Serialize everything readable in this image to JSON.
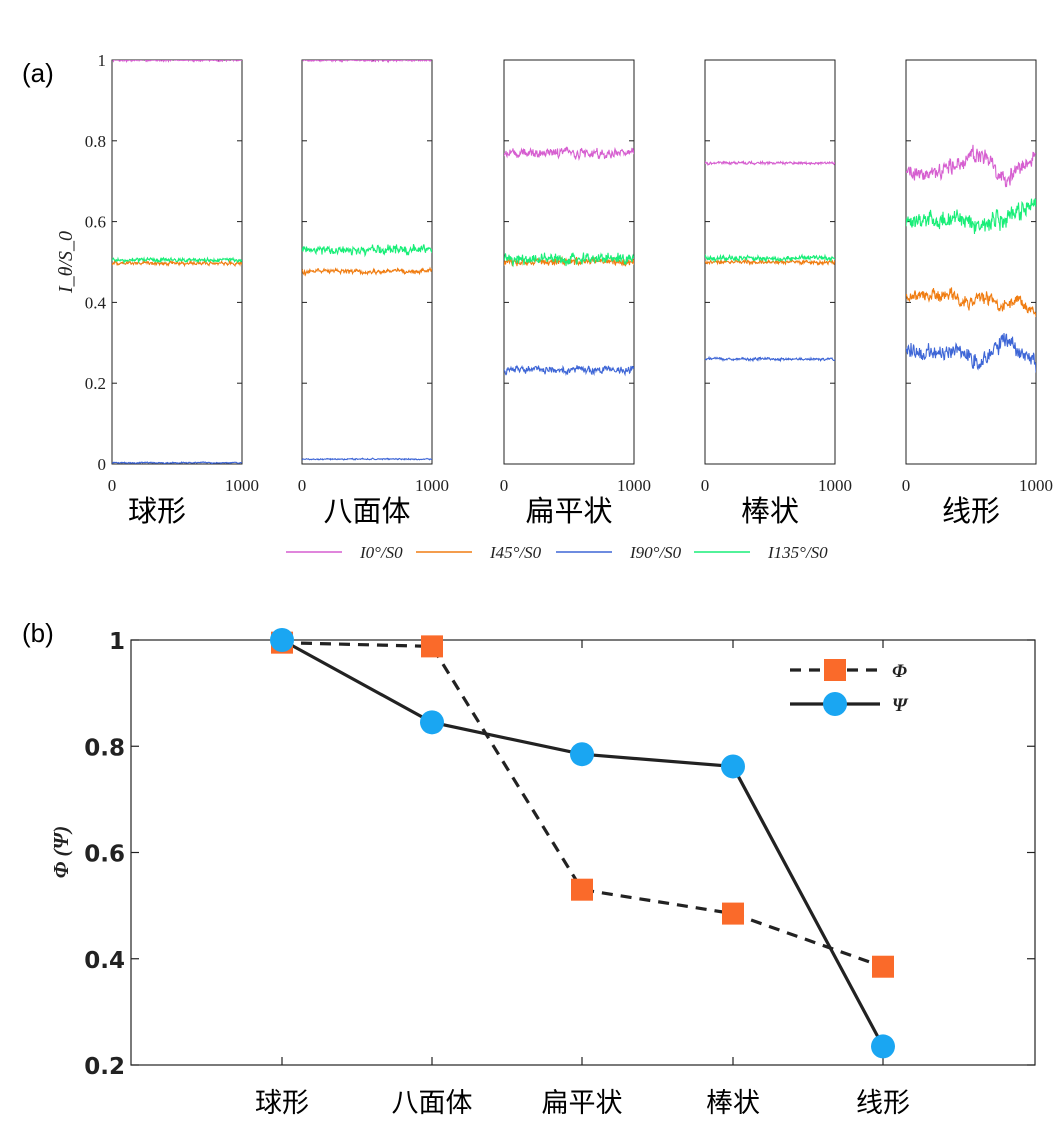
{
  "figure": {
    "panel_a_label": "(a)",
    "panel_b_label": "(b)"
  },
  "colors": {
    "I0": "#d65fd0",
    "I45": "#f07d12",
    "I90": "#3e66d6",
    "I135": "#19ee78",
    "phi": "#fa6a2a",
    "psi": "#1aa6f2",
    "line": "#222222"
  },
  "chart_data": [
    {
      "id": "a",
      "type": "line",
      "ylabel": "I_θ/S_0",
      "ylim": [
        0,
        1
      ],
      "yticks": [
        "0",
        "0.2",
        "0.4",
        "0.6",
        "0.8",
        "1"
      ],
      "xlim": [
        0,
        1000
      ],
      "xticks": [
        "0",
        "1000"
      ],
      "legend_position": "bottom-center",
      "series_names": [
        "I0°/S0",
        "I45°/S0",
        "I90°/S0",
        "I135°/S0"
      ],
      "subplots": [
        {
          "category": "球形",
          "series": [
            {
              "name": "I0°/S0",
              "mean": 1.0,
              "noise": 0.002,
              "trend": []
            },
            {
              "name": "I45°/S0",
              "mean": 0.497,
              "noise": 0.003,
              "trend": []
            },
            {
              "name": "I90°/S0",
              "mean": 0.003,
              "noise": 0.001,
              "trend": []
            },
            {
              "name": "I135°/S0",
              "mean": 0.505,
              "noise": 0.003,
              "trend": []
            }
          ]
        },
        {
          "category": "八面体",
          "series": [
            {
              "name": "I0°/S0",
              "mean": 1.0,
              "noise": 0.002,
              "trend": []
            },
            {
              "name": "I45°/S0",
              "mean": 0.477,
              "noise": 0.004,
              "trend": []
            },
            {
              "name": "I90°/S0",
              "mean": 0.012,
              "noise": 0.001,
              "trend": []
            },
            {
              "name": "I135°/S0",
              "mean": 0.53,
              "noise": 0.007,
              "trend": []
            }
          ]
        },
        {
          "category": "扁平状",
          "series": [
            {
              "name": "I0°/S0",
              "mean": 0.77,
              "noise": 0.007,
              "trend": []
            },
            {
              "name": "I45°/S0",
              "mean": 0.5,
              "noise": 0.006,
              "trend": []
            },
            {
              "name": "I90°/S0",
              "mean": 0.233,
              "noise": 0.006,
              "trend": []
            },
            {
              "name": "I135°/S0",
              "mean": 0.508,
              "noise": 0.008,
              "trend": []
            }
          ]
        },
        {
          "category": "棒状",
          "series": [
            {
              "name": "I0°/S0",
              "mean": 0.745,
              "noise": 0.002,
              "trend": []
            },
            {
              "name": "I45°/S0",
              "mean": 0.5,
              "noise": 0.003,
              "trend": []
            },
            {
              "name": "I90°/S0",
              "mean": 0.26,
              "noise": 0.002,
              "trend": []
            },
            {
              "name": "I135°/S0",
              "mean": 0.51,
              "noise": 0.004,
              "trend": []
            }
          ]
        },
        {
          "category": "线形",
          "series": [
            {
              "name": "I0°/S0",
              "mean": 0.0,
              "noise": 0.012,
              "trend": [
                [
                  0,
                  0.71
                ],
                [
                  120,
                  0.72
                ],
                [
                  250,
                  0.725
                ],
                [
                  380,
                  0.74
                ],
                [
                  480,
                  0.755
                ],
                [
                  580,
                  0.77
                ],
                [
                  680,
                  0.74
                ],
                [
                  760,
                  0.7
                ],
                [
                  860,
                  0.73
                ],
                [
                  1000,
                  0.77
                ]
              ]
            },
            {
              "name": "I45°/S0",
              "mean": 0.0,
              "noise": 0.01,
              "trend": [
                [
                  0,
                  0.41
                ],
                [
                  120,
                  0.415
                ],
                [
                  250,
                  0.42
                ],
                [
                  380,
                  0.41
                ],
                [
                  480,
                  0.4
                ],
                [
                  580,
                  0.415
                ],
                [
                  680,
                  0.4
                ],
                [
                  760,
                  0.39
                ],
                [
                  860,
                  0.4
                ],
                [
                  960,
                  0.38
                ],
                [
                  1000,
                  0.37
                ]
              ]
            },
            {
              "name": "I90°/S0",
              "mean": 0.0,
              "noise": 0.012,
              "trend": [
                [
                  0,
                  0.285
                ],
                [
                  120,
                  0.28
                ],
                [
                  250,
                  0.27
                ],
                [
                  380,
                  0.28
                ],
                [
                  480,
                  0.27
                ],
                [
                  580,
                  0.245
                ],
                [
                  680,
                  0.285
                ],
                [
                  760,
                  0.31
                ],
                [
                  860,
                  0.28
                ],
                [
                  960,
                  0.26
                ],
                [
                  1000,
                  0.24
                ]
              ]
            },
            {
              "name": "I135°/S0",
              "mean": 0.0,
              "noise": 0.014,
              "trend": [
                [
                  0,
                  0.59
                ],
                [
                  120,
                  0.6
                ],
                [
                  250,
                  0.6
                ],
                [
                  380,
                  0.61
                ],
                [
                  480,
                  0.6
                ],
                [
                  580,
                  0.59
                ],
                [
                  680,
                  0.605
                ],
                [
                  760,
                  0.61
                ],
                [
                  860,
                  0.62
                ],
                [
                  960,
                  0.64
                ],
                [
                  1000,
                  0.66
                ]
              ]
            }
          ]
        }
      ]
    },
    {
      "id": "b",
      "type": "line",
      "ylabel": "Φ (Ψ)",
      "ylim": [
        0.2,
        1.0
      ],
      "yticks": [
        "0.2",
        "0.4",
        "0.6",
        "0.8",
        "1"
      ],
      "categories": [
        "球形",
        "八面体",
        "扁平状",
        "棒状",
        "线形"
      ],
      "legend_position": "top-right",
      "series": [
        {
          "name": "Φ",
          "marker": "square",
          "style": "dashed",
          "values": [
            0.995,
            0.988,
            0.53,
            0.485,
            0.385
          ]
        },
        {
          "name": "Ψ",
          "marker": "circle",
          "style": "solid",
          "values": [
            1.0,
            0.845,
            0.785,
            0.762,
            0.235
          ]
        }
      ],
      "grid": false
    }
  ]
}
